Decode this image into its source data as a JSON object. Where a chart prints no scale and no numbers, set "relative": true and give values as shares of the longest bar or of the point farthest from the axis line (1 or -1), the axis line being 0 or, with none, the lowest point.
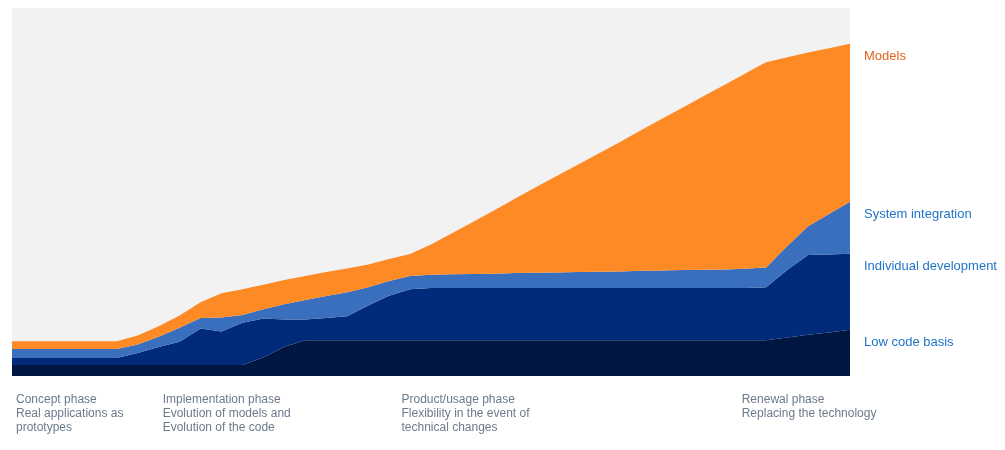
{
  "chart_data": {
    "type": "area",
    "stacked": true,
    "relative": true,
    "categories": [
      null,
      null,
      null,
      null,
      null,
      null,
      null,
      null,
      null,
      null,
      null,
      null,
      null,
      null,
      null,
      null,
      null,
      null,
      null,
      null,
      null,
      null,
      null,
      null,
      null,
      null,
      null,
      null,
      null,
      null,
      null,
      null,
      null,
      null,
      null,
      null,
      null,
      null,
      null,
      null,
      null
    ],
    "series": [
      {
        "name": "Low code basis",
        "color": "#011640",
        "values": [
          0.033,
          0.033,
          0.033,
          0.033,
          0.033,
          0.033,
          0.033,
          0.033,
          0.033,
          0.033,
          0.033,
          0.033,
          0.056,
          0.088,
          0.108,
          0.108,
          0.108,
          0.108,
          0.108,
          0.108,
          0.108,
          0.108,
          0.108,
          0.108,
          0.108,
          0.108,
          0.108,
          0.108,
          0.108,
          0.108,
          0.108,
          0.108,
          0.108,
          0.108,
          0.108,
          0.108,
          0.108,
          0.116,
          0.124,
          0.131,
          0.139
        ]
      },
      {
        "name": "Individual development",
        "color": "#012a7a",
        "values": [
          0.021,
          0.021,
          0.021,
          0.021,
          0.021,
          0.021,
          0.036,
          0.054,
          0.07,
          0.11,
          0.101,
          0.127,
          0.117,
          0.082,
          0.062,
          0.067,
          0.072,
          0.104,
          0.134,
          0.153,
          0.157,
          0.157,
          0.157,
          0.157,
          0.157,
          0.157,
          0.157,
          0.157,
          0.157,
          0.157,
          0.157,
          0.157,
          0.157,
          0.157,
          0.157,
          0.157,
          0.159,
          0.203,
          0.24,
          0.235,
          0.229
        ]
      },
      {
        "name": "System integration",
        "color": "#3a6fbe",
        "values": [
          0.027,
          0.027,
          0.027,
          0.027,
          0.027,
          0.027,
          0.026,
          0.031,
          0.042,
          0.032,
          0.042,
          0.024,
          0.028,
          0.046,
          0.059,
          0.066,
          0.072,
          0.055,
          0.044,
          0.04,
          0.04,
          0.041,
          0.042,
          0.043,
          0.045,
          0.046,
          0.047,
          0.048,
          0.049,
          0.05,
          0.052,
          0.053,
          0.054,
          0.055,
          0.056,
          0.058,
          0.06,
          0.072,
          0.087,
          0.122,
          0.157
        ]
      },
      {
        "name": "Models",
        "color": "#fd8a25",
        "values": [
          0.024,
          0.024,
          0.024,
          0.024,
          0.024,
          0.024,
          0.027,
          0.032,
          0.037,
          0.047,
          0.073,
          0.077,
          0.074,
          0.073,
          0.072,
          0.072,
          0.072,
          0.069,
          0.066,
          0.066,
          0.091,
          0.124,
          0.157,
          0.19,
          0.224,
          0.257,
          0.29,
          0.323,
          0.356,
          0.389,
          0.422,
          0.456,
          0.489,
          0.522,
          0.555,
          0.588,
          0.618,
          0.569,
          0.523,
          0.499,
          0.475
        ]
      }
    ],
    "annotations": [
      "Concept phase\n\nReal applications as\nprototypes",
      "Implementation phase\n\nEvolution of models and\nEvolution of the code",
      "Product/usage phase\n\nFlexibility in the event of\ntechnical changes",
      "Renewal phase\nReplacing the technology"
    ]
  }
}
